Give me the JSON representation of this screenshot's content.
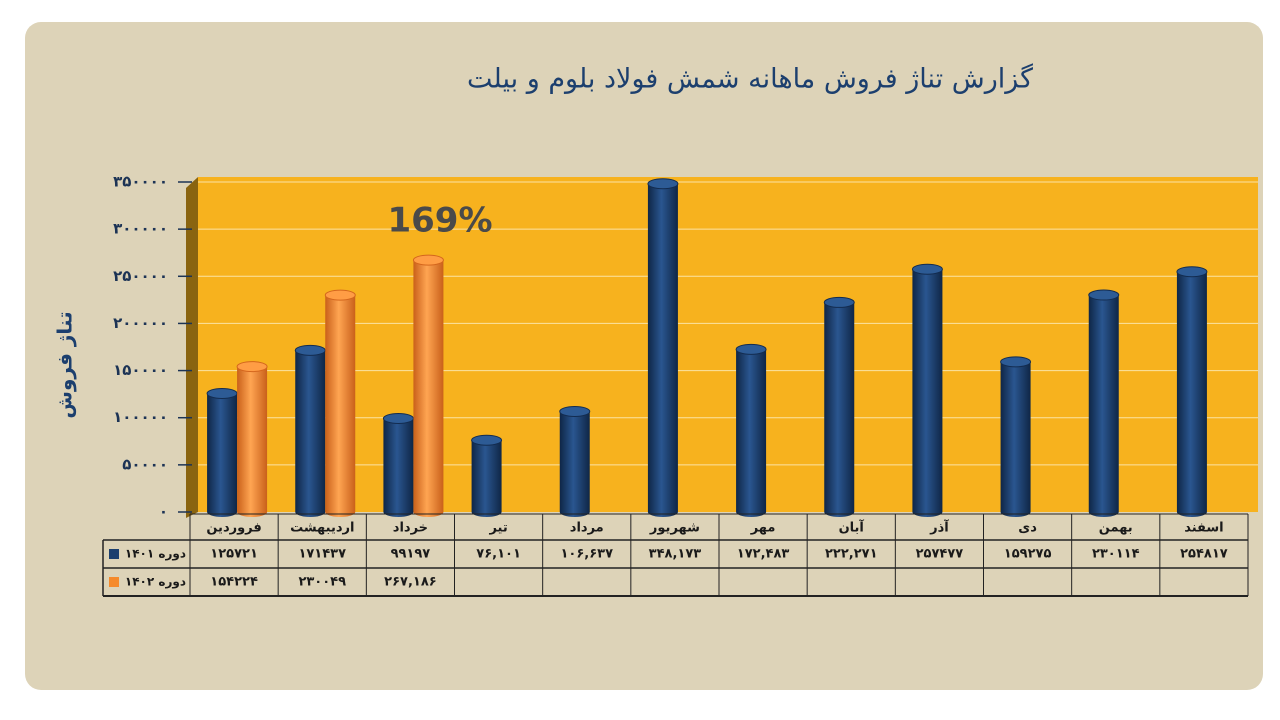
{
  "chart_data": {
    "type": "bar",
    "title": "گزارش تناژ فروش ماهانه شمش فولاد بلوم و بیلت",
    "y_label": "تناژ فروش",
    "annotation": "169%",
    "categories": [
      "فروردین",
      "اردیبهشت",
      "خرداد",
      "تیر",
      "مرداد",
      "شهریور",
      "مهر",
      "آبان",
      "آذر",
      "دی",
      "بهمن",
      "اسفند"
    ],
    "series": [
      {
        "name": "دوره ۱۴۰۱",
        "color": "#1c3f6e",
        "values": [
          125721,
          171437,
          99197,
          76101,
          106637,
          348173,
          172483,
          222271,
          257477,
          159275,
          230114,
          254817
        ],
        "value_labels": [
          "۱۲۵۷۲۱",
          "۱۷۱۴۳۷",
          "۹۹۱۹۷",
          "۷۶,۱۰۱",
          "۱۰۶,۶۳۷",
          "۳۴۸,۱۷۳",
          "۱۷۲,۴۸۳",
          "۲۲۲,۲۷۱",
          "۲۵۷۴۷۷",
          "۱۵۹۲۷۵",
          "۲۳۰۱۱۴",
          "۲۵۴۸۱۷"
        ]
      },
      {
        "name": "دوره ۱۴۰۲",
        "color": "#f58a2c",
        "values": [
          154224,
          230049,
          267186,
          null,
          null,
          null,
          null,
          null,
          null,
          null,
          null,
          null
        ],
        "value_labels": [
          "۱۵۴۲۲۴",
          "۲۳۰۰۴۹",
          "۲۶۷,۱۸۶",
          null,
          null,
          null,
          null,
          null,
          null,
          null,
          null,
          null
        ]
      }
    ],
    "ylim": [
      0,
      350000
    ],
    "yticks": [
      {
        "value": 0,
        "label": "۰"
      },
      {
        "value": 50000,
        "label": "۵۰۰۰۰"
      },
      {
        "value": 100000,
        "label": "۱۰۰۰۰۰"
      },
      {
        "value": 150000,
        "label": "۱۵۰۰۰۰"
      },
      {
        "value": 200000,
        "label": "۲۰۰۰۰۰"
      },
      {
        "value": 250000,
        "label": "۲۵۰۰۰۰"
      },
      {
        "value": 300000,
        "label": "۳۰۰۰۰۰"
      },
      {
        "value": 350000,
        "label": "۳۵۰۰۰۰"
      }
    ],
    "grid": true,
    "plot_color": "#f7b21e"
  }
}
